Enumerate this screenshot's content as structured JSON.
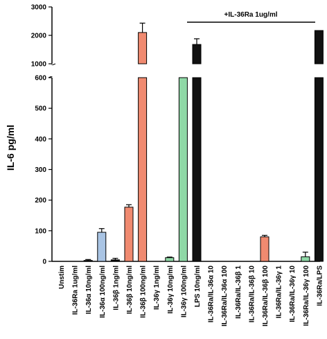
{
  "chart_data": {
    "type": "bar",
    "ylabel": "IL-6 pg/ml",
    "y_axis": "broken: lower segment 0-600, upper segment 1000-3000",
    "lower_ticks": [
      "0",
      "100",
      "200",
      "300",
      "400",
      "500",
      "600"
    ],
    "upper_ticks": [
      "1000",
      "2000",
      "3000"
    ],
    "categories": [
      "Unstim",
      "IL-36Ra 1ug/ml",
      "IL-36α 10ng/ml",
      "IL-36α 100ng/ml",
      "IL-36β 1ng/ml",
      "IL-36β 10ng/ml",
      "IL-36β 100ng/ml",
      "IL-36γ 1ng/ml",
      "IL-36γ 10ng/ml",
      "IL-36γ 100ng/ml",
      "LPS 10ng/ml",
      "IL-36Ra/IL-36α 10",
      "IL-36Ra/IL-36α 100",
      "IL-36Ra/IL-36β 1",
      "IL-36Ra/IL-36β 10",
      "IL-36Ra/IL-36β 100",
      "IL-36Ra/IL-36γ 1",
      "IL-36Ra/IL-36γ 10",
      "IL-36Ra/IL-36γ 100",
      "IL-36Ra/LPS"
    ],
    "values": [
      0,
      0,
      3,
      95,
      5,
      177,
      2100,
      0,
      12,
      950,
      1680,
      0,
      0,
      0,
      0,
      80,
      0,
      0,
      15,
      2170
    ],
    "errors": [
      0,
      0,
      3,
      12,
      5,
      8,
      330,
      0,
      2,
      20,
      200,
      0,
      0,
      0,
      0,
      5,
      0,
      0,
      15,
      0
    ],
    "colors": [
      "#000000",
      "#000000",
      "#000000",
      "#a9c4e4",
      "#000000",
      "#f08a70",
      "#f08a70",
      "#000000",
      "#8fd8a6",
      "#8fd8a6",
      "#111111",
      "#000000",
      "#000000",
      "#000000",
      "#000000",
      "#f08a70",
      "#000000",
      "#000000",
      "#8fd8a6",
      "#111111"
    ],
    "annotation": "+IL-36Ra 1ug/ml"
  }
}
